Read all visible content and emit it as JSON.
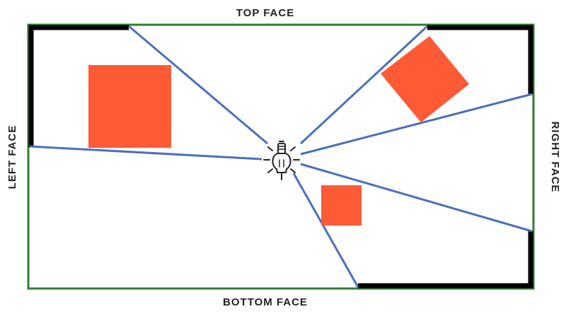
{
  "labels": {
    "top": "TOP FACE",
    "bottom": "BOTTOM FACE",
    "left": "LEFT FACE",
    "right": "RIGHT FACE"
  },
  "colors": {
    "boundary": "#2e7d32",
    "shadow_edge": "#000000",
    "ray": "#4a6fbd",
    "obstacle": "#ff5a36",
    "bulb": "#222222",
    "text": "#222222"
  },
  "icons": {
    "light": "light-bulb-icon"
  }
}
